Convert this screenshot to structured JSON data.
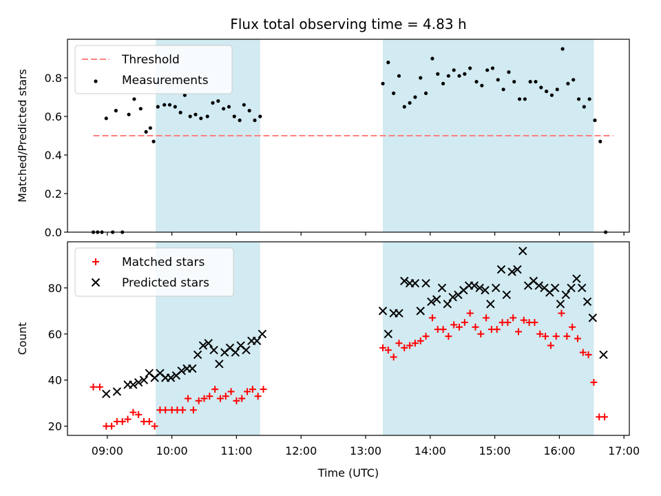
{
  "chart_data": {
    "title": "Flux total observing time = 4.83 h",
    "xlabel": "Time (UTC)",
    "x_ticks": [
      "09:00",
      "10:00",
      "11:00",
      "12:00",
      "13:00",
      "14:00",
      "15:00",
      "16:00",
      "17:00"
    ],
    "x_range": [
      "08:23",
      "17:05"
    ],
    "shaded_intervals": [
      [
        "09:45",
        "11:22"
      ],
      [
        "13:16",
        "16:32"
      ]
    ],
    "shade_color": "#add8e6",
    "panels": [
      {
        "type": "scatter",
        "ylabel": "Matched/Predicted stars",
        "ylim": [
          0,
          1.0
        ],
        "yticks": [
          "0.0",
          "0.2",
          "0.4",
          "0.6",
          "0.8"
        ],
        "legend_position": "upper-left",
        "threshold": {
          "name": "Threshold",
          "value": 0.5,
          "x": [
            "08:47",
            "16:50"
          ],
          "color": "#ff7f7f"
        },
        "series": [
          {
            "name": "Measurements",
            "color": "#000000",
            "marker": "dot",
            "points": [
              [
                "08:47",
                0.0
              ],
              [
                "08:51",
                0.0
              ],
              [
                "08:55",
                0.0
              ],
              [
                "08:59",
                0.59
              ],
              [
                "09:05",
                0.0
              ],
              [
                "09:08",
                0.63
              ],
              [
                "09:14",
                0.0
              ],
              [
                "09:20",
                0.61
              ],
              [
                "09:25",
                0.69
              ],
              [
                "09:31",
                0.64
              ],
              [
                "09:36",
                0.52
              ],
              [
                "09:40",
                0.54
              ],
              [
                "09:43",
                0.47
              ],
              [
                "09:47",
                0.65
              ],
              [
                "09:53",
                0.66
              ],
              [
                "09:58",
                0.66
              ],
              [
                "10:03",
                0.65
              ],
              [
                "10:08",
                0.62
              ],
              [
                "10:12",
                0.71
              ],
              [
                "10:17",
                0.6
              ],
              [
                "10:22",
                0.61
              ],
              [
                "10:27",
                0.59
              ],
              [
                "10:33",
                0.6
              ],
              [
                "10:38",
                0.67
              ],
              [
                "10:43",
                0.68
              ],
              [
                "10:48",
                0.64
              ],
              [
                "10:53",
                0.65
              ],
              [
                "10:58",
                0.6
              ],
              [
                "11:03",
                0.58
              ],
              [
                "11:07",
                0.66
              ],
              [
                "11:12",
                0.63
              ],
              [
                "11:17",
                0.58
              ],
              [
                "11:22",
                0.6
              ],
              [
                "13:16",
                0.77
              ],
              [
                "13:21",
                0.88
              ],
              [
                "13:26",
                0.72
              ],
              [
                "13:31",
                0.81
              ],
              [
                "13:36",
                0.65
              ],
              [
                "13:41",
                0.67
              ],
              [
                "13:46",
                0.7
              ],
              [
                "13:51",
                0.8
              ],
              [
                "13:56",
                0.72
              ],
              [
                "14:02",
                0.9
              ],
              [
                "14:07",
                0.82
              ],
              [
                "14:12",
                0.77
              ],
              [
                "14:17",
                0.81
              ],
              [
                "14:22",
                0.84
              ],
              [
                "14:27",
                0.81
              ],
              [
                "14:32",
                0.82
              ],
              [
                "14:37",
                0.85
              ],
              [
                "14:43",
                0.78
              ],
              [
                "14:48",
                0.76
              ],
              [
                "14:53",
                0.84
              ],
              [
                "14:58",
                0.85
              ],
              [
                "15:03",
                0.79
              ],
              [
                "15:08",
                0.74
              ],
              [
                "15:13",
                0.83
              ],
              [
                "15:18",
                0.78
              ],
              [
                "15:23",
                0.69
              ],
              [
                "15:28",
                0.69
              ],
              [
                "15:33",
                0.78
              ],
              [
                "15:38",
                0.78
              ],
              [
                "15:43",
                0.75
              ],
              [
                "15:48",
                0.73
              ],
              [
                "15:53",
                0.71
              ],
              [
                "15:58",
                0.74
              ],
              [
                "16:03",
                0.95
              ],
              [
                "16:08",
                0.77
              ],
              [
                "16:13",
                0.79
              ],
              [
                "16:18",
                0.69
              ],
              [
                "16:23",
                0.65
              ],
              [
                "16:28",
                0.69
              ],
              [
                "16:33",
                0.58
              ],
              [
                "16:38",
                0.47
              ],
              [
                "16:43",
                0.0
              ]
            ]
          }
        ]
      },
      {
        "type": "scatter",
        "ylabel": "Count",
        "ylim": [
          16,
          100
        ],
        "yticks": [
          "20",
          "40",
          "60",
          "80"
        ],
        "legend_position": "upper-left",
        "series": [
          {
            "name": "Matched stars",
            "color": "#ff0000",
            "marker": "plus",
            "points": [
              [
                "08:47",
                37
              ],
              [
                "08:53",
                37
              ],
              [
                "08:59",
                20
              ],
              [
                "09:04",
                20
              ],
              [
                "09:09",
                22
              ],
              [
                "09:14",
                22
              ],
              [
                "09:19",
                23
              ],
              [
                "09:24",
                26
              ],
              [
                "09:29",
                25
              ],
              [
                "09:34",
                22
              ],
              [
                "09:39",
                22
              ],
              [
                "09:44",
                20
              ],
              [
                "09:49",
                27
              ],
              [
                "09:54",
                27
              ],
              [
                "10:00",
                27
              ],
              [
                "10:05",
                27
              ],
              [
                "10:10",
                27
              ],
              [
                "10:15",
                32
              ],
              [
                "10:20",
                27
              ],
              [
                "10:25",
                31
              ],
              [
                "10:30",
                32
              ],
              [
                "10:35",
                33
              ],
              [
                "10:40",
                36
              ],
              [
                "10:45",
                32
              ],
              [
                "10:50",
                33
              ],
              [
                "10:55",
                35
              ],
              [
                "11:00",
                31
              ],
              [
                "11:05",
                32
              ],
              [
                "11:10",
                35
              ],
              [
                "11:15",
                36
              ],
              [
                "11:20",
                33
              ],
              [
                "11:25",
                36
              ],
              [
                "13:16",
                54
              ],
              [
                "13:21",
                53
              ],
              [
                "13:26",
                50
              ],
              [
                "13:31",
                56
              ],
              [
                "13:36",
                54
              ],
              [
                "13:41",
                55
              ],
              [
                "13:46",
                56
              ],
              [
                "13:51",
                57
              ],
              [
                "13:56",
                59
              ],
              [
                "14:02",
                67
              ],
              [
                "14:07",
                62
              ],
              [
                "14:12",
                62
              ],
              [
                "14:17",
                59
              ],
              [
                "14:22",
                64
              ],
              [
                "14:27",
                63
              ],
              [
                "14:32",
                65
              ],
              [
                "14:37",
                69
              ],
              [
                "14:42",
                63
              ],
              [
                "14:47",
                60
              ],
              [
                "14:52",
                67
              ],
              [
                "14:57",
                62
              ],
              [
                "15:02",
                62
              ],
              [
                "15:07",
                65
              ],
              [
                "15:12",
                65
              ],
              [
                "15:17",
                67
              ],
              [
                "15:22",
                61
              ],
              [
                "15:27",
                66
              ],
              [
                "15:32",
                65
              ],
              [
                "15:37",
                65
              ],
              [
                "15:42",
                60
              ],
              [
                "15:47",
                59
              ],
              [
                "15:52",
                55
              ],
              [
                "15:57",
                59
              ],
              [
                "16:02",
                69
              ],
              [
                "16:07",
                59
              ],
              [
                "16:12",
                63
              ],
              [
                "16:17",
                58
              ],
              [
                "16:22",
                52
              ],
              [
                "16:27",
                51
              ],
              [
                "16:32",
                39
              ],
              [
                "16:37",
                24
              ],
              [
                "16:42",
                24
              ]
            ]
          },
          {
            "name": "Predicted stars",
            "color": "#000000",
            "marker": "x",
            "points": [
              [
                "08:59",
                34
              ],
              [
                "09:09",
                35
              ],
              [
                "09:19",
                38
              ],
              [
                "09:24",
                38
              ],
              [
                "09:29",
                39
              ],
              [
                "09:34",
                40
              ],
              [
                "09:39",
                43
              ],
              [
                "09:44",
                41
              ],
              [
                "09:49",
                43
              ],
              [
                "09:54",
                41
              ],
              [
                "09:59",
                41
              ],
              [
                "10:04",
                42
              ],
              [
                "10:09",
                44
              ],
              [
                "10:14",
                45
              ],
              [
                "10:19",
                45
              ],
              [
                "10:24",
                51
              ],
              [
                "10:29",
                55
              ],
              [
                "10:34",
                56
              ],
              [
                "10:39",
                53
              ],
              [
                "10:44",
                47
              ],
              [
                "10:49",
                52
              ],
              [
                "10:54",
                54
              ],
              [
                "10:59",
                52
              ],
              [
                "11:04",
                55
              ],
              [
                "11:09",
                53
              ],
              [
                "11:14",
                57
              ],
              [
                "11:19",
                57
              ],
              [
                "11:24",
                60
              ],
              [
                "13:16",
                70
              ],
              [
                "13:21",
                60
              ],
              [
                "13:26",
                69
              ],
              [
                "13:31",
                69
              ],
              [
                "13:36",
                83
              ],
              [
                "13:41",
                82
              ],
              [
                "13:46",
                82
              ],
              [
                "13:51",
                70
              ],
              [
                "13:56",
                82
              ],
              [
                "14:01",
                74
              ],
              [
                "14:06",
                75
              ],
              [
                "14:11",
                80
              ],
              [
                "14:16",
                73
              ],
              [
                "14:21",
                76
              ],
              [
                "14:26",
                77
              ],
              [
                "14:31",
                79
              ],
              [
                "14:36",
                81
              ],
              [
                "14:41",
                81
              ],
              [
                "14:46",
                80
              ],
              [
                "14:51",
                79
              ],
              [
                "14:56",
                73
              ],
              [
                "15:01",
                80
              ],
              [
                "15:06",
                88
              ],
              [
                "15:11",
                77
              ],
              [
                "15:16",
                87
              ],
              [
                "15:21",
                88
              ],
              [
                "15:26",
                96
              ],
              [
                "15:31",
                81
              ],
              [
                "15:36",
                83
              ],
              [
                "15:41",
                81
              ],
              [
                "15:46",
                80
              ],
              [
                "15:51",
                78
              ],
              [
                "15:56",
                80
              ],
              [
                "16:01",
                73
              ],
              [
                "16:06",
                77
              ],
              [
                "16:11",
                80
              ],
              [
                "16:16",
                84
              ],
              [
                "16:21",
                80
              ],
              [
                "16:26",
                74
              ],
              [
                "16:31",
                67
              ],
              [
                "16:41",
                51
              ]
            ]
          }
        ]
      }
    ]
  }
}
